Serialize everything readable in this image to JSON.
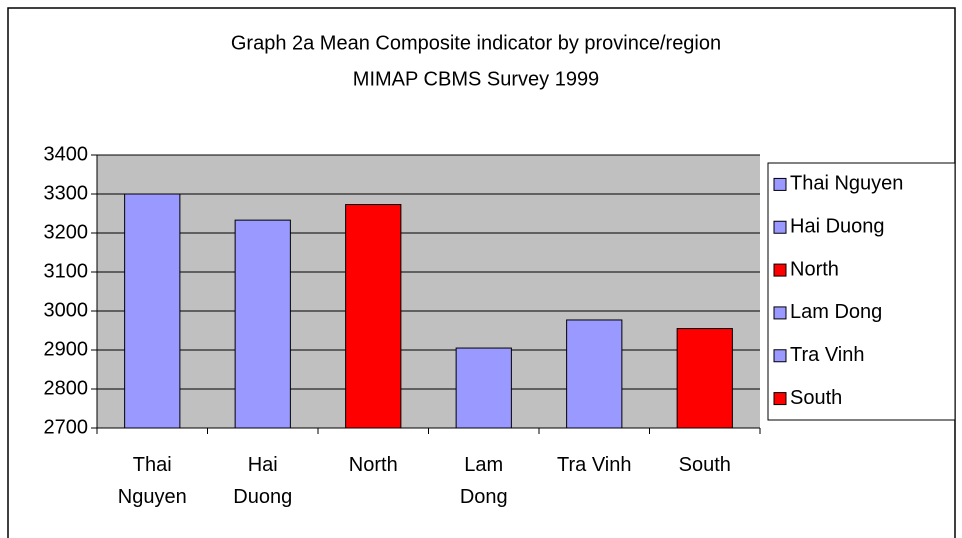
{
  "chart_data": {
    "type": "bar",
    "title": "Graph 2a Mean Composite indicator by province/region",
    "subtitle": "MIMAP CBMS Survey 1999",
    "categories": [
      "Thai Nguyen",
      "Hai Duong",
      "North",
      "Lam Dong",
      "Tra Vinh",
      "South"
    ],
    "values": [
      3300,
      3233,
      3273,
      2905,
      2977,
      2955
    ],
    "colors": [
      "#9999ff",
      "#9999ff",
      "#ff0000",
      "#9999ff",
      "#9999ff",
      "#ff0000"
    ],
    "ylim": [
      2700,
      3400
    ],
    "yticks": [
      2700,
      2800,
      2900,
      3000,
      3100,
      3200,
      3300,
      3400
    ],
    "grid": true,
    "legend": "right"
  }
}
